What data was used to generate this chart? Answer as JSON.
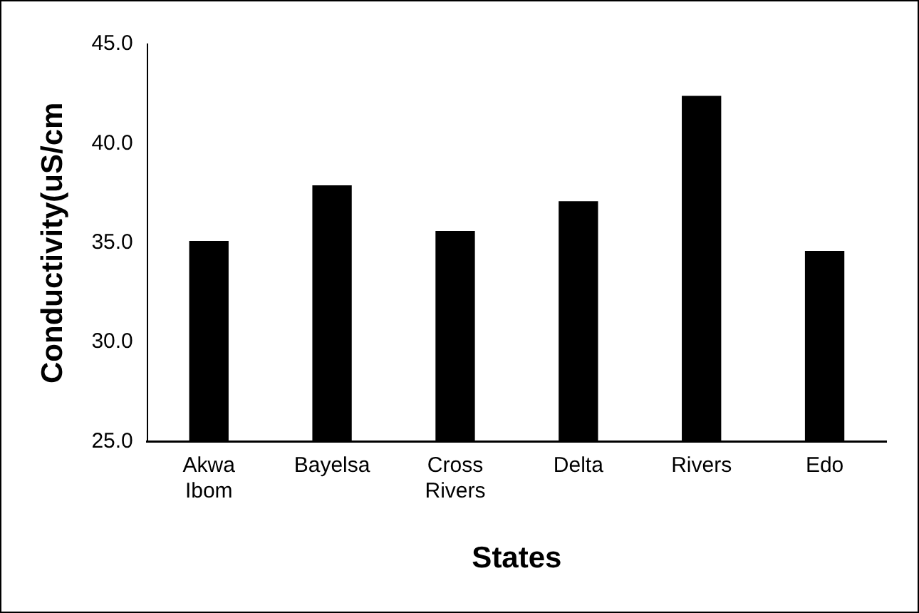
{
  "chart_data": {
    "type": "bar",
    "xlabel": "States",
    "ylabel": "Conductivity(uS/cm",
    "categories": [
      "Akwa Ibom",
      "Bayelsa",
      "Cross Rivers",
      "Delta",
      "Rivers",
      "Edo"
    ],
    "values": [
      35.1,
      37.9,
      35.6,
      37.1,
      42.4,
      34.6
    ],
    "color": "#000000",
    "ylim": [
      25,
      45
    ],
    "yticks": [
      {
        "value": 25,
        "label": "25.0"
      },
      {
        "value": 30,
        "label": "30.0"
      },
      {
        "value": 35,
        "label": "35.0"
      },
      {
        "value": 40,
        "label": "40.0"
      },
      {
        "value": 45,
        "label": "45.0"
      }
    ],
    "grid": false,
    "legend": false
  }
}
